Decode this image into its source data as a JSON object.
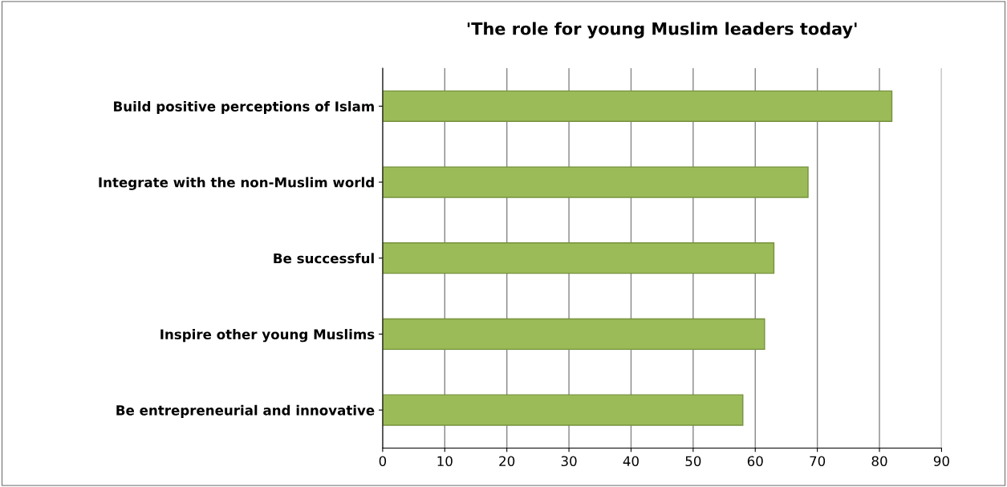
{
  "chart_data": {
    "type": "bar",
    "orientation": "horizontal",
    "title": "'The role for young Muslim leaders today'",
    "categories": [
      "Build positive perceptions of Islam",
      "Integrate with the non-Muslim world",
      "Be successful",
      "Inspire other young Muslims",
      "Be entrepreneurial and innovative"
    ],
    "values": [
      82,
      68.5,
      63,
      61.5,
      58
    ],
    "color": "#9bbb59",
    "xlim": [
      0,
      90
    ],
    "xticks": [
      0,
      10,
      20,
      30,
      40,
      50,
      60,
      70,
      80,
      90
    ],
    "grid": "x"
  }
}
